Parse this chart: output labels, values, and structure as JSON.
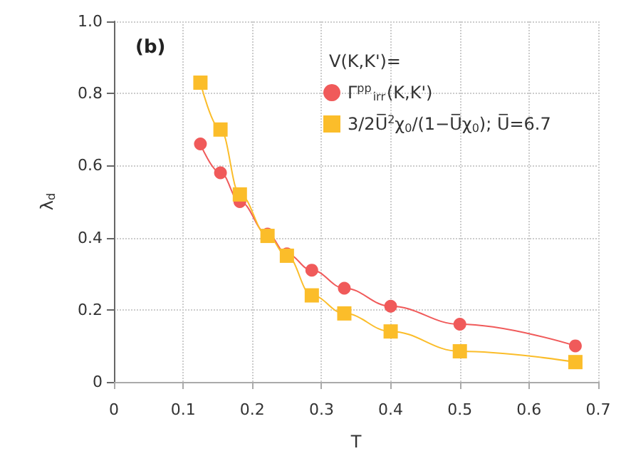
{
  "chart_data": {
    "type": "line",
    "xlabel": "T",
    "ylabel": "λ$_{d}$",
    "legend_title": "V(K,K')=",
    "annotations": [
      "(b)"
    ],
    "xlim": [
      0,
      0.7
    ],
    "xticks": [
      0,
      0.1,
      0.2,
      0.3,
      0.4,
      0.5,
      0.6,
      0.7
    ],
    "ylim": [
      0,
      1
    ],
    "yticks": [
      0,
      0.2,
      0.4,
      0.6,
      0.8,
      {
        "value": 1,
        "label": "1.0"
      }
    ],
    "grid": true,
    "legend": "top right",
    "line_style": "solid",
    "series": [
      {
        "name": "Γ$^{pp}$$_{irr}$(K,K')",
        "color": "#f05a5a",
        "marker": "circle",
        "x": [
          0.125,
          0.154,
          0.182,
          0.222,
          0.25,
          0.286,
          0.333,
          0.4,
          0.5,
          0.667
        ],
        "values": [
          0.66,
          0.58,
          0.5,
          0.41,
          0.355,
          0.31,
          0.26,
          0.21,
          0.16,
          0.1
        ]
      },
      {
        "name": "3/2U̅$^{2}$χ$_{0}$/(1−U̅χ$_{0}$); U̅=6.7",
        "color": "#fbbd2a",
        "marker": "square",
        "x": [
          0.125,
          0.154,
          0.182,
          0.222,
          0.25,
          0.286,
          0.333,
          0.4,
          0.5,
          0.667
        ],
        "values": [
          0.83,
          0.7,
          0.52,
          0.405,
          0.35,
          0.24,
          0.19,
          0.14,
          0.085,
          0.055
        ]
      }
    ]
  }
}
